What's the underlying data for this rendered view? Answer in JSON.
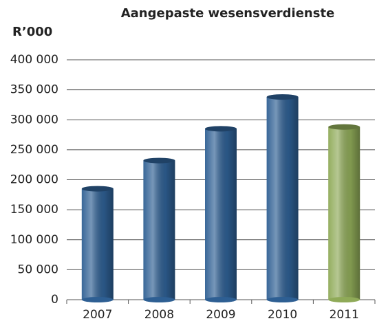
{
  "chart_data": {
    "type": "bar",
    "title": "Aangepaste wesensverdienste",
    "y_label": "R’000",
    "categories": [
      "2007",
      "2008",
      "2009",
      "2010",
      "2011"
    ],
    "values": [
      185000,
      232000,
      285000,
      338000,
      288000
    ],
    "colors": [
      "#2e5f93",
      "#2e5f93",
      "#2e5f93",
      "#2e5f93",
      "#8faa58"
    ],
    "ylim": [
      0,
      400000
    ],
    "yticks": [
      0,
      {
        "value": 50000,
        "label": "50 000"
      },
      {
        "value": 100000,
        "label": "100 000"
      },
      {
        "value": 150000,
        "label": "150 000"
      },
      {
        "value": 200000,
        "label": "200 000"
      },
      {
        "value": 250000,
        "label": "250 000"
      },
      {
        "value": 300000,
        "label": "300 000"
      },
      {
        "value": 350000,
        "label": "350 000"
      },
      {
        "value": 400000,
        "label": "400 000"
      }
    ],
    "grid": true
  }
}
